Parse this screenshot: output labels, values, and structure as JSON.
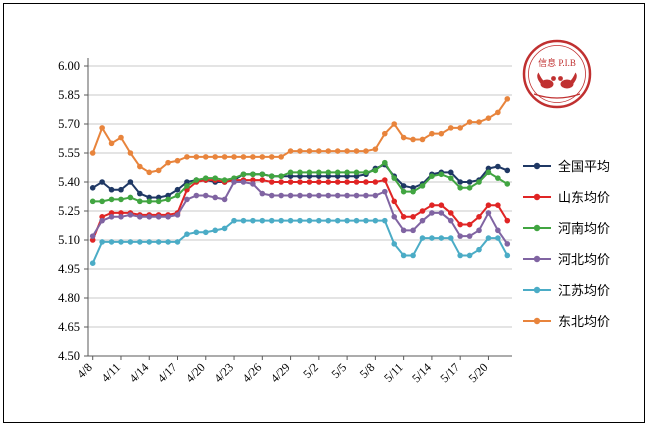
{
  "logo": {
    "text_line1": "信息 P.I.B",
    "accent_color": "#C03030"
  },
  "chart_data": {
    "type": "line",
    "title": "",
    "xlabel": "",
    "ylabel": "",
    "grid": "horizontal",
    "legend_position": "right",
    "ylim": [
      4.5,
      6.0
    ],
    "yticks": [
      4.5,
      4.65,
      4.8,
      4.95,
      5.1,
      5.25,
      5.4,
      5.55,
      5.7,
      5.85,
      6.0
    ],
    "xtick_every": 3,
    "x": [
      "4/8",
      "4/9",
      "4/10",
      "4/11",
      "4/12",
      "4/13",
      "4/14",
      "4/15",
      "4/16",
      "4/17",
      "4/18",
      "4/19",
      "4/20",
      "4/21",
      "4/22",
      "4/23",
      "4/24",
      "4/25",
      "4/26",
      "4/27",
      "4/28",
      "4/29",
      "4/30",
      "5/1",
      "5/2",
      "5/3",
      "5/4",
      "5/5",
      "5/6",
      "5/7",
      "5/8",
      "5/9",
      "5/10",
      "5/11",
      "5/12",
      "5/13",
      "5/14",
      "5/15",
      "5/16",
      "5/17",
      "5/18",
      "5/19",
      "5/20",
      "5/21",
      "5/22"
    ],
    "series": [
      {
        "name": "全国平均",
        "color": "#1F3864",
        "values": [
          5.37,
          5.4,
          5.36,
          5.36,
          5.4,
          5.34,
          5.32,
          5.32,
          5.33,
          5.36,
          5.4,
          5.41,
          5.41,
          5.4,
          5.4,
          5.41,
          5.44,
          5.44,
          5.44,
          5.43,
          5.43,
          5.43,
          5.43,
          5.43,
          5.43,
          5.43,
          5.43,
          5.43,
          5.43,
          5.44,
          5.47,
          5.49,
          5.43,
          5.38,
          5.37,
          5.39,
          5.44,
          5.45,
          5.45,
          5.4,
          5.4,
          5.41,
          5.47,
          5.48,
          5.46
        ]
      },
      {
        "name": "山东均价",
        "color": "#E02525",
        "values": [
          5.1,
          5.22,
          5.24,
          5.24,
          5.24,
          5.23,
          5.23,
          5.23,
          5.23,
          5.24,
          5.36,
          5.4,
          5.41,
          5.41,
          5.4,
          5.41,
          5.41,
          5.41,
          5.41,
          5.4,
          5.4,
          5.4,
          5.4,
          5.4,
          5.4,
          5.4,
          5.4,
          5.4,
          5.4,
          5.4,
          5.4,
          5.41,
          5.3,
          5.22,
          5.22,
          5.25,
          5.28,
          5.28,
          5.24,
          5.18,
          5.18,
          5.22,
          5.28,
          5.28,
          5.2
        ]
      },
      {
        "name": "河南均价",
        "color": "#41A541",
        "values": [
          5.3,
          5.3,
          5.31,
          5.31,
          5.32,
          5.3,
          5.3,
          5.3,
          5.31,
          5.33,
          5.38,
          5.41,
          5.42,
          5.42,
          5.41,
          5.42,
          5.44,
          5.44,
          5.44,
          5.43,
          5.43,
          5.45,
          5.45,
          5.45,
          5.45,
          5.45,
          5.45,
          5.45,
          5.45,
          5.45,
          5.46,
          5.5,
          5.42,
          5.35,
          5.35,
          5.38,
          5.43,
          5.44,
          5.42,
          5.37,
          5.37,
          5.4,
          5.45,
          5.42,
          5.39
        ]
      },
      {
        "name": "河北均价",
        "color": "#8064A2",
        "values": [
          5.12,
          5.2,
          5.22,
          5.22,
          5.23,
          5.22,
          5.22,
          5.22,
          5.22,
          5.23,
          5.31,
          5.33,
          5.33,
          5.32,
          5.31,
          5.4,
          5.4,
          5.39,
          5.34,
          5.33,
          5.33,
          5.33,
          5.33,
          5.33,
          5.33,
          5.33,
          5.33,
          5.33,
          5.33,
          5.33,
          5.33,
          5.35,
          5.22,
          5.15,
          5.15,
          5.2,
          5.24,
          5.24,
          5.2,
          5.12,
          5.12,
          5.15,
          5.24,
          5.15,
          5.08
        ]
      },
      {
        "name": "江苏均价",
        "color": "#4BACC6",
        "values": [
          4.98,
          5.09,
          5.09,
          5.09,
          5.09,
          5.09,
          5.09,
          5.09,
          5.09,
          5.09,
          5.13,
          5.14,
          5.14,
          5.15,
          5.16,
          5.2,
          5.2,
          5.2,
          5.2,
          5.2,
          5.2,
          5.2,
          5.2,
          5.2,
          5.2,
          5.2,
          5.2,
          5.2,
          5.2,
          5.2,
          5.2,
          5.2,
          5.08,
          5.02,
          5.02,
          5.11,
          5.11,
          5.11,
          5.11,
          5.02,
          5.02,
          5.05,
          5.11,
          5.11,
          5.02
        ]
      },
      {
        "name": "东北均价",
        "color": "#E8843C",
        "values": [
          5.55,
          5.68,
          5.6,
          5.63,
          5.55,
          5.48,
          5.45,
          5.46,
          5.5,
          5.51,
          5.53,
          5.53,
          5.53,
          5.53,
          5.53,
          5.53,
          5.53,
          5.53,
          5.53,
          5.53,
          5.53,
          5.56,
          5.56,
          5.56,
          5.56,
          5.56,
          5.56,
          5.56,
          5.56,
          5.56,
          5.57,
          5.65,
          5.7,
          5.63,
          5.62,
          5.62,
          5.65,
          5.65,
          5.68,
          5.68,
          5.71,
          5.71,
          5.73,
          5.76,
          5.83
        ]
      }
    ]
  }
}
